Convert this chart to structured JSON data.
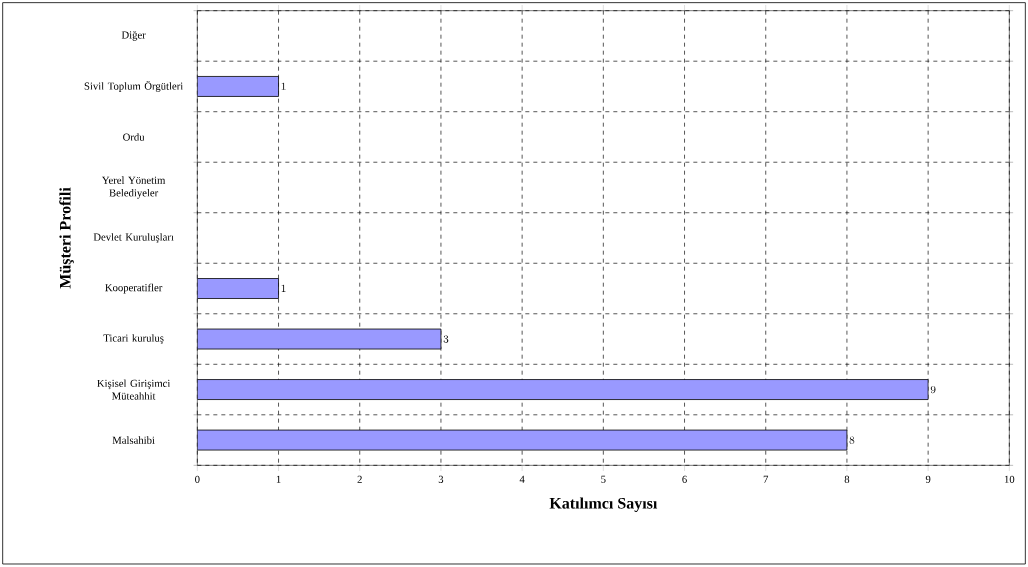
{
  "chart_data": {
    "type": "bar",
    "orientation": "horizontal",
    "xlabel": "Katılımcı Sayısı",
    "ylabel": "Müşteri Profili",
    "categories": [
      "Diğer",
      "Sivil Toplum Örgütleri",
      "Ordu",
      "Yerel Yönetim Belediyeler",
      "Devlet Kuruluşları",
      "Kooperatifler",
      "Ticari kuruluş",
      "Kişisel Girişimci Müteahhit",
      "Malsahibi"
    ],
    "values": [
      null,
      1,
      null,
      null,
      null,
      1,
      3,
      9,
      8
    ],
    "color": "#9999ff",
    "xlim": [
      0,
      10
    ],
    "xticks": [
      0,
      1,
      2,
      3,
      4,
      5,
      6,
      7,
      8,
      9,
      10
    ],
    "grid": true,
    "data_labels": true
  }
}
